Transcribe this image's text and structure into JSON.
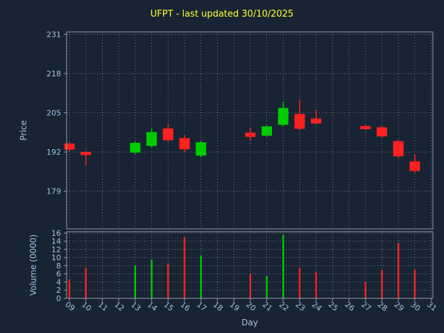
{
  "figure": {
    "title": "UFPT - last updated 30/10/2025",
    "xlabel": "Day",
    "price_ylabel": "Price",
    "volume_ylabel": "Volume (0000)"
  },
  "colors": {
    "background": "#182433",
    "title": "#ffff33",
    "tick_label": "#a4c2e3",
    "grid": "#cfd6dd",
    "spine": "#94a1ae",
    "up": "#00cc00",
    "down": "#ff2020"
  },
  "chart_data": {
    "type": "candlestick",
    "title": "UFPT - last updated 30/10/2025",
    "xlabel": "Day",
    "ylabel": "Price",
    "volume_ylabel": "Volume (0000)",
    "legend": "none",
    "grid": "dotted",
    "x_ticks": [
      9,
      10,
      11,
      12,
      13,
      14,
      15,
      16,
      17,
      18,
      19,
      20,
      21,
      22,
      23,
      24,
      25,
      26,
      27,
      28,
      29,
      30,
      31
    ],
    "x_tick_labels": [
      "09",
      "10",
      "11",
      "12",
      "13",
      "14",
      "15",
      "16",
      "17",
      "18",
      "19",
      "20",
      "21",
      "22",
      "23",
      "24",
      "25",
      "26",
      "27",
      "28",
      "29",
      "30",
      "31"
    ],
    "price_ticks": [
      179,
      192,
      205,
      218,
      231
    ],
    "volume_ticks": [
      0,
      2,
      4,
      6,
      8,
      10,
      12,
      14,
      16
    ],
    "day_axis": {
      "min": 8.83,
      "max": 31.1
    },
    "price_axis": {
      "min": 166.5,
      "max": 231.8
    },
    "volume_axis": {
      "min": 0,
      "max": 16.34
    },
    "candles": [
      {
        "day": 9,
        "open": 194.8,
        "high": 195.2,
        "low": 192.3,
        "close": 192.8,
        "volume": 4.5
      },
      {
        "day": 10,
        "open": 192.0,
        "high": 192.4,
        "low": 187.5,
        "close": 191.0,
        "volume": 7.5
      },
      {
        "day": 13,
        "open": 191.8,
        "high": 195.4,
        "low": 191.4,
        "close": 195.0,
        "volume": 8.0
      },
      {
        "day": 14,
        "open": 194.0,
        "high": 199.8,
        "low": 193.5,
        "close": 198.6,
        "volume": 9.5
      },
      {
        "day": 15,
        "open": 199.8,
        "high": 201.2,
        "low": 195.4,
        "close": 195.9,
        "volume": 8.5
      },
      {
        "day": 16,
        "open": 196.6,
        "high": 197.6,
        "low": 191.9,
        "close": 192.9,
        "volume": 15.0
      },
      {
        "day": 17,
        "open": 190.8,
        "high": 195.6,
        "low": 190.4,
        "close": 195.2,
        "volume": 10.5
      },
      {
        "day": 20,
        "open": 198.4,
        "high": 200.0,
        "low": 195.9,
        "close": 197.0,
        "volume": 6.0
      },
      {
        "day": 21,
        "open": 197.4,
        "high": 200.9,
        "low": 197.1,
        "close": 200.5,
        "volume": 5.5
      },
      {
        "day": 22,
        "open": 201.0,
        "high": 208.6,
        "low": 200.6,
        "close": 206.6,
        "volume": 15.5
      },
      {
        "day": 23,
        "open": 204.6,
        "high": 209.2,
        "low": 199.2,
        "close": 199.7,
        "volume": 7.5
      },
      {
        "day": 24,
        "open": 203.1,
        "high": 206.0,
        "low": 201.0,
        "close": 201.5,
        "volume": 6.5
      },
      {
        "day": 27,
        "open": 200.6,
        "high": 201.0,
        "low": 199.2,
        "close": 199.6,
        "volume": 4.0
      },
      {
        "day": 28,
        "open": 200.2,
        "high": 200.7,
        "low": 196.7,
        "close": 197.2,
        "volume": 7.0
      },
      {
        "day": 29,
        "open": 195.6,
        "high": 196.1,
        "low": 190.0,
        "close": 190.6,
        "volume": 13.5
      },
      {
        "day": 30,
        "open": 188.9,
        "high": 191.2,
        "low": 185.2,
        "close": 185.7,
        "volume": 7.0
      }
    ]
  }
}
